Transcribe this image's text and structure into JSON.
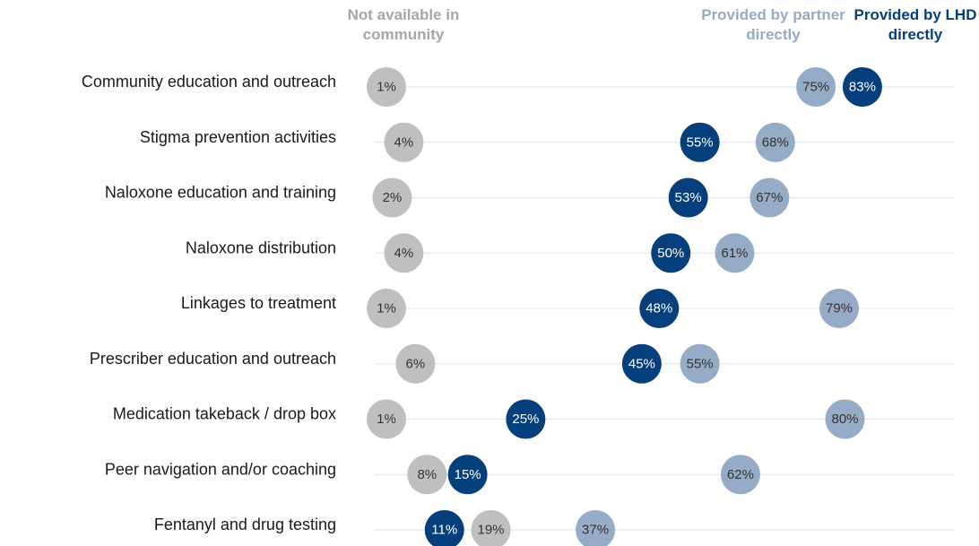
{
  "chart_data": {
    "type": "dot",
    "categories": [
      "Community education and outreach",
      "Stigma prevention activities",
      "Naloxone education and training",
      "Naloxone distribution",
      "Linkages to treatment",
      "Prescriber education and outreach",
      "Medication takeback / drop box",
      "Peer navigation and/or coaching",
      "Fentanyl and drug testing"
    ],
    "xlim": [
      0,
      100
    ],
    "series": [
      {
        "name": "Not available in community",
        "color": "#bfbfbf",
        "values": [
          1,
          4,
          2,
          4,
          1,
          6,
          1,
          8,
          19
        ],
        "value_labels": [
          "1%",
          "4%",
          "2%",
          "4%",
          "1%",
          "6%",
          "1%",
          "8%",
          "19%"
        ]
      },
      {
        "name": "Provided by partner directly",
        "color": "#96abc6",
        "values": [
          75,
          68,
          67,
          61,
          79,
          55,
          80,
          62,
          37
        ],
        "value_labels": [
          "75%",
          "68%",
          "67%",
          "61%",
          "79%",
          "55%",
          "80%",
          "62%",
          "37%"
        ]
      },
      {
        "name": "Provided by LHD directly",
        "color": "#053f7c",
        "values": [
          83,
          55,
          53,
          50,
          48,
          45,
          25,
          15,
          11
        ],
        "value_labels": [
          "83%",
          "55%",
          "53%",
          "50%",
          "48%",
          "45%",
          "25%",
          "15%",
          "11%"
        ]
      }
    ]
  }
}
